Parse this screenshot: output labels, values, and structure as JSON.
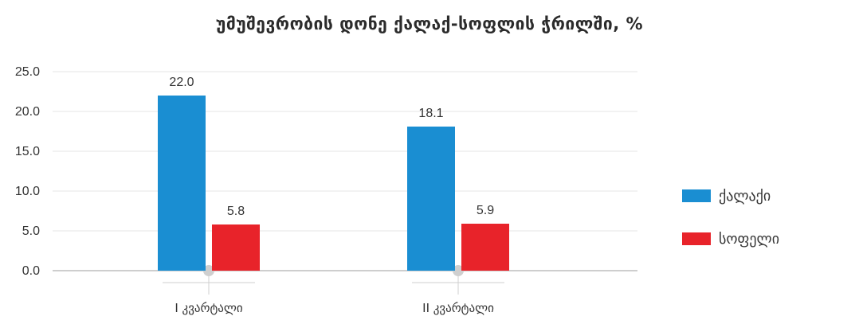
{
  "chart_data": {
    "type": "bar",
    "title": "უმუშევრობის დონე ქალაქ-სოფლის ჭრილში, %",
    "categories": [
      "I კვარტალი",
      "II კვარტალი"
    ],
    "series": [
      {
        "name": "ქალაქი",
        "values": [
          22.0,
          18.1
        ],
        "color": "#1a8ed2"
      },
      {
        "name": "სოფელი",
        "values": [
          5.8,
          5.9
        ],
        "color": "#e8232a"
      }
    ],
    "y_ticks": [
      "0.0",
      "5.0",
      "10.0",
      "15.0",
      "20.0",
      "25.0"
    ],
    "ylim": [
      0,
      25
    ],
    "grid": true,
    "legend_position": "right"
  }
}
